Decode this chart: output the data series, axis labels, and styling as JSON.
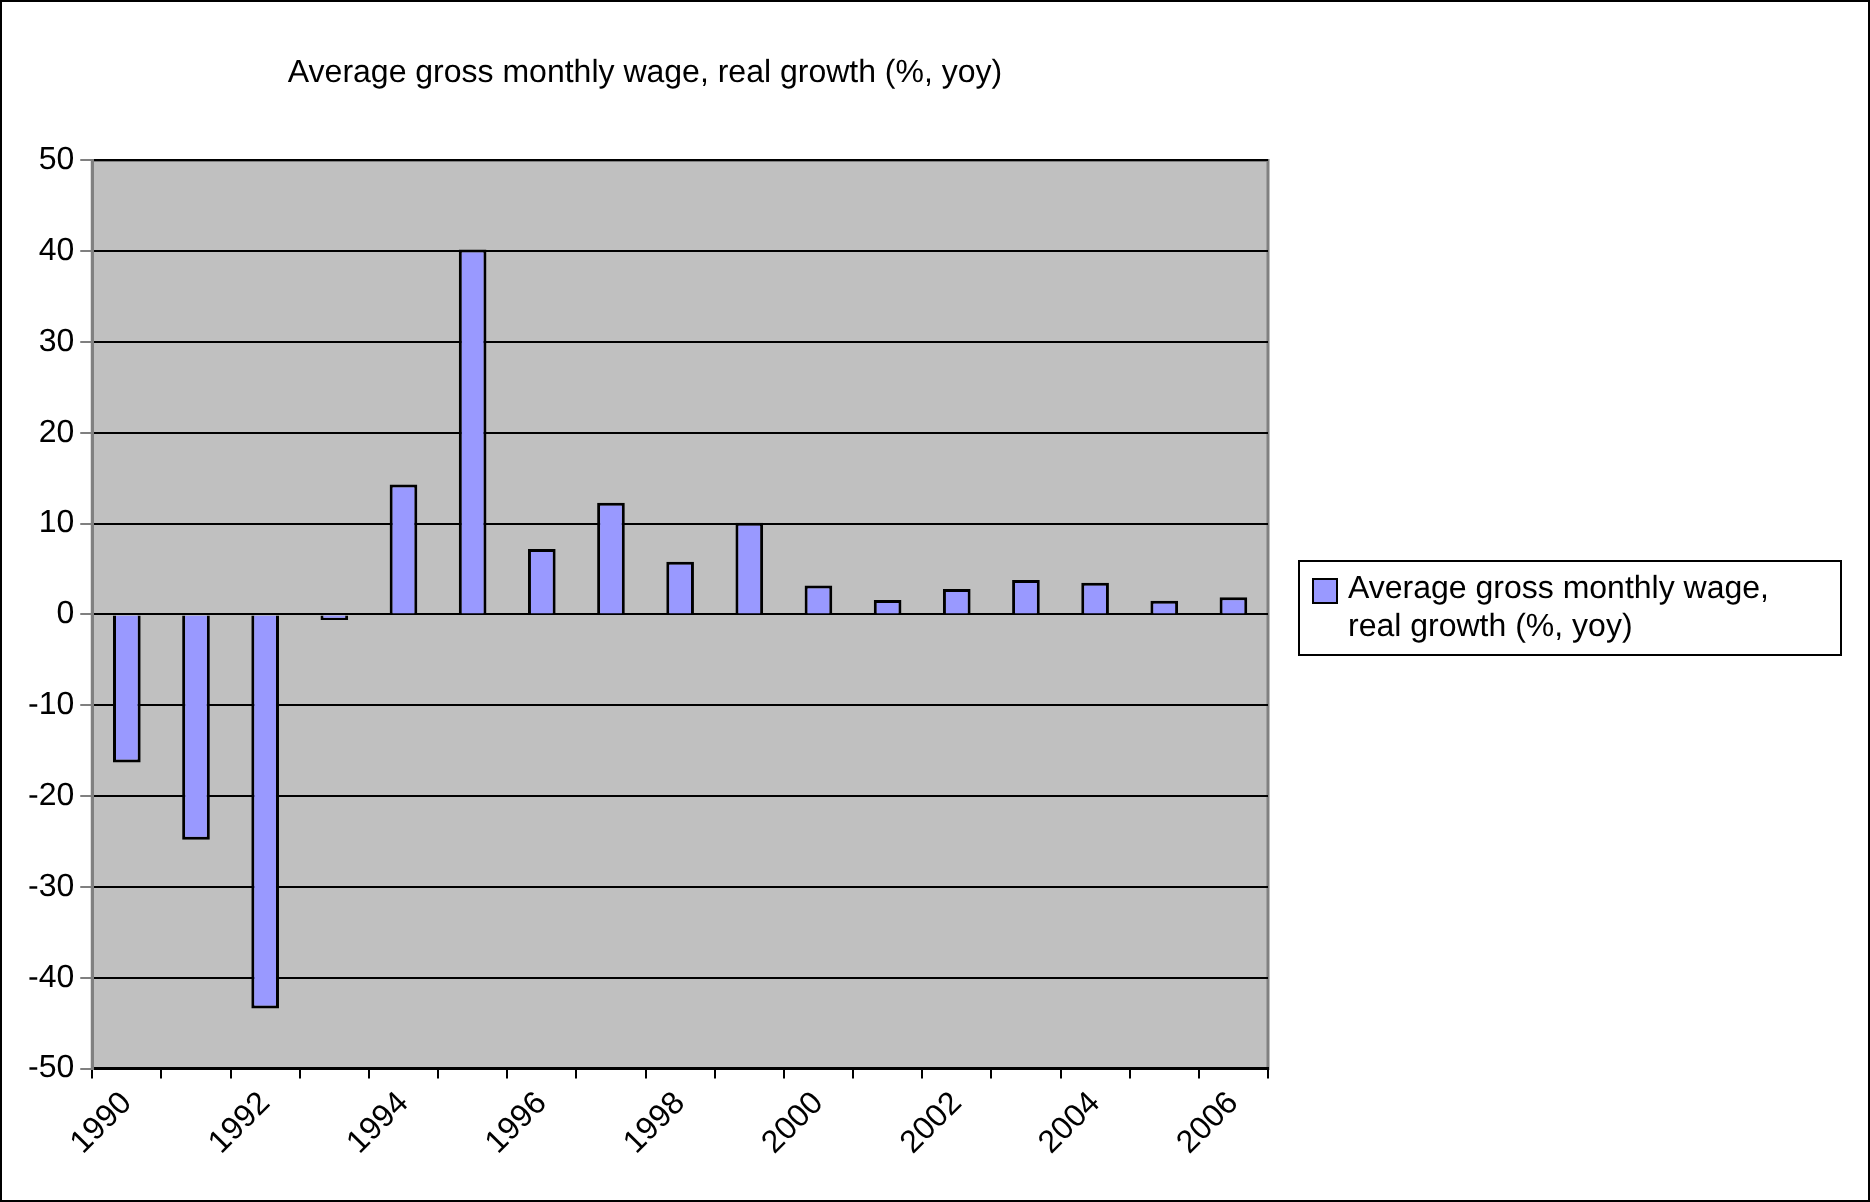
{
  "chart_data": {
    "type": "bar",
    "title": "Average gross monthly wage, real growth (%, yoy)",
    "categories": [
      "1990",
      null,
      "1992",
      null,
      "1994",
      null,
      "1996",
      null,
      "1998",
      null,
      "2000",
      null,
      "2002",
      null,
      "2004",
      null,
      "2006"
    ],
    "series": [
      {
        "name": "Average gross monthly wage, real growth (%, yoy)",
        "color": "#9999ff",
        "values": [
          -16.3,
          -24.8,
          -43.4,
          -0.6,
          14.3,
          40.2,
          7.2,
          12.3,
          5.8,
          10.1,
          3.2,
          1.6,
          2.8,
          3.8,
          3.5,
          1.5,
          1.9
        ]
      }
    ],
    "ylim": [
      -50,
      50
    ],
    "yticks": [
      -50,
      -40,
      -30,
      -20,
      -10,
      0,
      10,
      20,
      30,
      40,
      50
    ],
    "grid": "y",
    "legend": "right"
  }
}
